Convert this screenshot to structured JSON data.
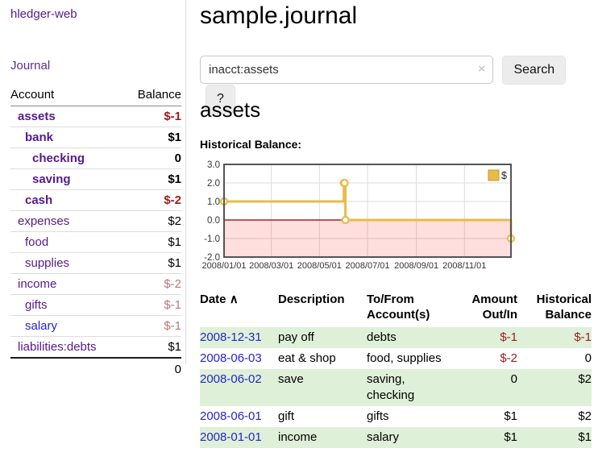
{
  "app": {
    "title": "hledger-web"
  },
  "sidebar": {
    "journal_link": "Journal",
    "accounts_table": {
      "headers": {
        "account": "Account",
        "balance": "Balance"
      },
      "rows": [
        {
          "name": "assets",
          "indent": 1,
          "active": true,
          "name_color": "purple",
          "balance": "$-1",
          "balance_class": "bal-red"
        },
        {
          "name": "bank",
          "indent": 2,
          "active": true,
          "name_color": "purple",
          "balance": "$1",
          "balance_class": ""
        },
        {
          "name": "checking",
          "indent": 3,
          "active": true,
          "name_color": "purple",
          "balance": "0",
          "balance_class": ""
        },
        {
          "name": "saving",
          "indent": 3,
          "active": true,
          "name_color": "purple",
          "balance": "$1",
          "balance_class": ""
        },
        {
          "name": "cash",
          "indent": 2,
          "active": true,
          "name_color": "purple",
          "balance": "$-2",
          "balance_class": "bal-red"
        },
        {
          "name": "expenses",
          "indent": 1,
          "active": false,
          "name_color": "purple",
          "balance": "$2",
          "balance_class": ""
        },
        {
          "name": "food",
          "indent": 2,
          "active": false,
          "name_color": "purple",
          "balance": "$1",
          "balance_class": ""
        },
        {
          "name": "supplies",
          "indent": 2,
          "active": false,
          "name_color": "purple",
          "balance": "$1",
          "balance_class": ""
        },
        {
          "name": "income",
          "indent": 1,
          "active": false,
          "name_color": "purple",
          "balance": "$-2",
          "balance_class": "bal-rose"
        },
        {
          "name": "gifts",
          "indent": 2,
          "active": false,
          "name_color": "purple",
          "balance": "$-1",
          "balance_class": "bal-rose"
        },
        {
          "name": "salary",
          "indent": 2,
          "active": false,
          "name_color": "blue",
          "balance": "$-1",
          "balance_class": "bal-rose"
        },
        {
          "name": "liabilities:debts",
          "indent": 1,
          "active": false,
          "name_color": "purple",
          "balance": "$1",
          "balance_class": ""
        }
      ],
      "total": "0"
    }
  },
  "main": {
    "title": "sample.journal",
    "search": {
      "value": "inacct:assets",
      "clear_icon": "×",
      "button_label": "Search",
      "help_label": "?"
    },
    "account_heading": "assets",
    "chart_heading": "Historical Balance:"
  },
  "chart_data": {
    "type": "line",
    "step": true,
    "title": "Historical Balance:",
    "series": [
      {
        "name": "$",
        "color": "#e8bc4a",
        "points": [
          [
            "2008-01-01",
            1
          ],
          [
            "2008-06-01",
            2
          ],
          [
            "2008-06-02",
            2
          ],
          [
            "2008-06-03",
            0
          ],
          [
            "2008-12-31",
            -1
          ]
        ]
      }
    ],
    "point_days": [
      0,
      152,
      153,
      154,
      364
    ],
    "x_domain_days": [
      0,
      364
    ],
    "x_tick_days": [
      0,
      60,
      121,
      182,
      244,
      305
    ],
    "x_tick_labels": [
      "2008/01/01",
      "2008/03/01",
      "2008/05/01",
      "2008/07/01",
      "2008/09/01",
      "2008/11/01"
    ],
    "y_ticks": [
      3.0,
      2.0,
      1.0,
      0.0,
      -1.0,
      -2.0
    ],
    "ylim": [
      -2,
      3
    ],
    "grid": true,
    "legend": {
      "label": "$",
      "position": "top-right"
    },
    "zero_line_color": "#8b0000",
    "negative_region_fill": "rgba(255,0,0,0.13)",
    "border_color": "#545454",
    "grid_color": "#dcdcdc"
  },
  "transactions": {
    "headers": {
      "date": "Date",
      "sort_indicator": "∧",
      "description": "Description",
      "tofrom_line1": "To/From",
      "tofrom_line2": "Account(s)",
      "amount_line1": "Amount",
      "amount_line2": "Out/In",
      "balance_line1": "Historical",
      "balance_line2": "Balance"
    },
    "rows": [
      {
        "date": "2008-12-31",
        "description": "pay off",
        "accounts": "debts",
        "amount": "$-1",
        "amount_negative": true,
        "balance": "$-1",
        "balance_negative": true
      },
      {
        "date": "2008-06-03",
        "description": "eat & shop",
        "accounts": "food, supplies",
        "amount": "$-2",
        "amount_negative": true,
        "balance": "0",
        "balance_negative": false
      },
      {
        "date": "2008-06-02",
        "description": "save",
        "accounts": "saving, checking",
        "amount": "0",
        "amount_negative": false,
        "balance": "$2",
        "balance_negative": false
      },
      {
        "date": "2008-06-01",
        "description": "gift",
        "accounts": "gifts",
        "amount": "$1",
        "amount_negative": false,
        "balance": "$2",
        "balance_negative": false
      },
      {
        "date": "2008-01-01",
        "description": "income",
        "accounts": "salary",
        "amount": "$1",
        "amount_negative": false,
        "balance": "$1",
        "balance_negative": false
      }
    ]
  },
  "colors": {
    "link_purple": "#551a8b",
    "link_blue": "#2525cc",
    "negative_red": "#9b1c1c",
    "muted_negative_rose": "#b97676",
    "row_green": "#dff0d8",
    "chart_gold": "#e8bc4a"
  }
}
